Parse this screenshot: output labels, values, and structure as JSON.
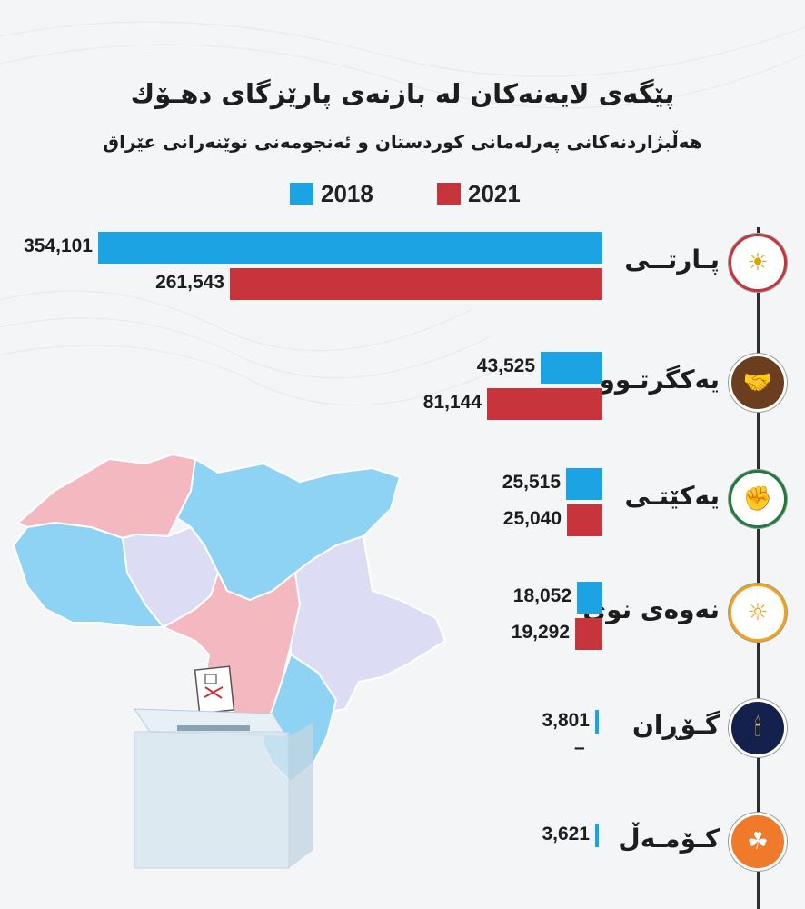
{
  "header": {
    "title": "پێگەی لایەنەکان لە بازنەی پارێزگای دهـۆك",
    "subtitle": "هەڵبژاردنەكانی پەرلەمانی كوردستان و ئەنجومەنی نوێنەرانی عێراق"
  },
  "legend": [
    {
      "label": "2018",
      "color": "#1ba3e3"
    },
    {
      "label": "2021",
      "color": "#c8343b"
    }
  ],
  "colors": {
    "s2018": "#1ba3e3",
    "s2021": "#c8343b",
    "map_pink": "#f4b8c0",
    "map_blue": "#8ed3f4",
    "map_lavender": "#dcdcf4"
  },
  "chart_data": {
    "type": "bar",
    "orientation": "horizontal",
    "title": "پێگەی لایەنەکان لە بازنەی پارێزگای دهـۆك",
    "subtitle": "هەڵبژاردنەكانی پەرلەمانی كوردستان و ئەنجومەنی نوێنەرانی عێراق",
    "categories": [
      "پـارتــی",
      "یەکگرتـوو",
      "یەکێتـی",
      "نەوەی نوێ",
      "گـۆڕان",
      "کـۆمـەڵ"
    ],
    "series": [
      {
        "name": "2018",
        "values": [
          354101,
          43525,
          25515,
          18052,
          3801,
          3621
        ]
      },
      {
        "name": "2021",
        "values": [
          261543,
          81144,
          25040,
          19292,
          null,
          null
        ]
      }
    ],
    "labels_2018": [
      "354,101",
      "43,525",
      "25,515",
      "18,052",
      "3,801",
      "3,621"
    ],
    "labels_2021": [
      "261,543",
      "81,144",
      "25,040",
      "19,292",
      "–",
      ""
    ],
    "logos": [
      "kdp-logo",
      "kiu-logo",
      "puk-logo",
      "new-generation-logo",
      "gorran-logo",
      "komal-logo"
    ],
    "legend_position": "top",
    "grid": false
  }
}
